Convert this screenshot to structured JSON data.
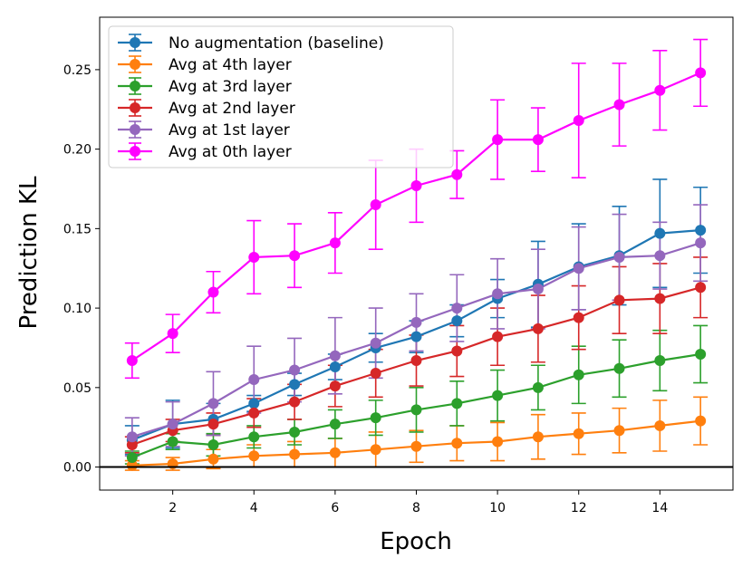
{
  "chart_data": {
    "type": "line",
    "xlabel": "Epoch",
    "ylabel": "Prediction KL",
    "xlim": [
      0.2,
      15.8
    ],
    "ylim": [
      -0.0145,
      0.283
    ],
    "x_ticks": [
      2,
      4,
      6,
      8,
      10,
      12,
      14
    ],
    "x_tick_labels": [
      "2",
      "4",
      "6",
      "8",
      "10",
      "12",
      "14"
    ],
    "y_ticks": [
      0,
      0.05,
      0.1,
      0.15,
      0.2,
      0.25
    ],
    "y_tick_labels": [
      "0.00",
      "0.05",
      "0.10",
      "0.15",
      "0.20",
      "0.25"
    ],
    "hline_y": 0,
    "legend_position": "top-left",
    "x": [
      1,
      2,
      3,
      4,
      5,
      6,
      7,
      8,
      9,
      10,
      11,
      12,
      13,
      14,
      15
    ],
    "series": [
      {
        "name": "No augmentation (baseline)",
        "color": "#1f77b4",
        "values": [
          0.017,
          0.027,
          0.03,
          0.04,
          0.052,
          0.063,
          0.075,
          0.082,
          0.092,
          0.106,
          0.115,
          0.126,
          0.133,
          0.147,
          0.149
        ],
        "err": [
          0.009,
          0.015,
          0.01,
          0.005,
          0.007,
          0.008,
          0.009,
          0.01,
          0.01,
          0.012,
          0.027,
          0.027,
          0.031,
          0.034,
          0.027
        ]
      },
      {
        "name": "Avg at 4th layer",
        "color": "#ff7f0e",
        "values": [
          0.001,
          0.002,
          0.005,
          0.007,
          0.008,
          0.009,
          0.011,
          0.013,
          0.015,
          0.016,
          0.019,
          0.021,
          0.023,
          0.026,
          0.029
        ],
        "err": [
          0.003,
          0.004,
          0.006,
          0.007,
          0.008,
          0.009,
          0.011,
          0.01,
          0.011,
          0.012,
          0.014,
          0.013,
          0.014,
          0.016,
          0.015
        ]
      },
      {
        "name": "Avg at 3rd layer",
        "color": "#2ca02c",
        "values": [
          0.006,
          0.016,
          0.014,
          0.019,
          0.022,
          0.027,
          0.031,
          0.036,
          0.04,
          0.045,
          0.05,
          0.058,
          0.062,
          0.067,
          0.071
        ],
        "err": [
          0.004,
          0.005,
          0.007,
          0.007,
          0.008,
          0.009,
          0.011,
          0.014,
          0.014,
          0.016,
          0.014,
          0.018,
          0.018,
          0.019,
          0.018
        ]
      },
      {
        "name": "Avg at 2nd layer",
        "color": "#d62728",
        "values": [
          0.014,
          0.023,
          0.027,
          0.034,
          0.041,
          0.051,
          0.059,
          0.067,
          0.073,
          0.082,
          0.087,
          0.094,
          0.105,
          0.106,
          0.113
        ],
        "err": [
          0.005,
          0.007,
          0.007,
          0.009,
          0.011,
          0.013,
          0.015,
          0.016,
          0.016,
          0.018,
          0.021,
          0.02,
          0.021,
          0.022,
          0.019
        ]
      },
      {
        "name": "Avg at 1st layer",
        "color": "#9467bd",
        "values": [
          0.019,
          0.027,
          0.04,
          0.055,
          0.061,
          0.07,
          0.078,
          0.091,
          0.1,
          0.109,
          0.112,
          0.125,
          0.132,
          0.133,
          0.141
        ],
        "err": [
          0.012,
          0.014,
          0.02,
          0.021,
          0.02,
          0.024,
          0.022,
          0.018,
          0.021,
          0.022,
          0.025,
          0.026,
          0.027,
          0.021,
          0.024
        ]
      },
      {
        "name": "Avg at 0th layer",
        "color": "#ff00ff",
        "values": [
          0.067,
          0.084,
          0.11,
          0.132,
          0.133,
          0.141,
          0.165,
          0.177,
          0.184,
          0.206,
          0.206,
          0.218,
          0.228,
          0.237,
          0.248
        ],
        "err": [
          0.011,
          0.012,
          0.013,
          0.023,
          0.02,
          0.019,
          0.028,
          0.023,
          0.015,
          0.025,
          0.02,
          0.036,
          0.026,
          0.025,
          0.021
        ]
      }
    ]
  }
}
